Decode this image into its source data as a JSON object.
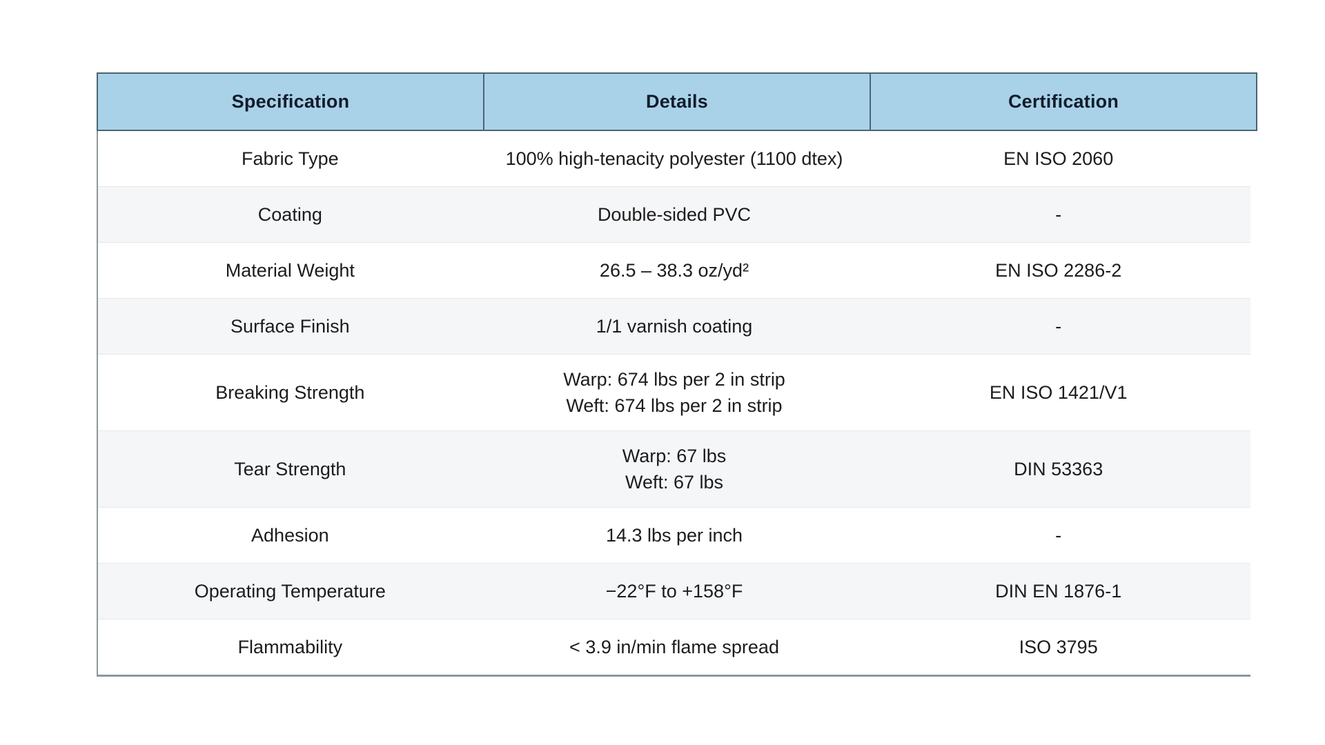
{
  "theme": {
    "page_bg": "#ffffff",
    "header_bg": "#a9d2e8",
    "header_border": "#4a6472",
    "header_text": "#121c2b",
    "body_text": "#1c1c1c",
    "row_alt_bg": "#f5f6f8",
    "row_separator": "#e6e7e9",
    "table_edge": "#8d969b"
  },
  "table": {
    "columns": [
      "Specification",
      "Details",
      "Certification"
    ],
    "rows": [
      {
        "specification": "Fabric Type",
        "details": "100% high-tenacity polyester (1100 dtex)",
        "certification": "EN ISO 2060"
      },
      {
        "specification": "Coating",
        "details": "Double-sided PVC",
        "certification": "-"
      },
      {
        "specification": "Material Weight",
        "details": "26.5 – 38.3 oz/yd²",
        "certification": "EN ISO 2286-2"
      },
      {
        "specification": "Surface Finish",
        "details": "1/1 varnish coating",
        "certification": "-"
      },
      {
        "specification": "Breaking Strength",
        "details": "Warp: 674 lbs per 2 in strip\nWeft: 674 lbs per 2 in strip",
        "certification": "EN ISO 1421/V1"
      },
      {
        "specification": "Tear Strength",
        "details": "Warp: 67 lbs\nWeft: 67 lbs",
        "certification": "DIN 53363"
      },
      {
        "specification": "Adhesion",
        "details": "14.3 lbs per inch",
        "certification": "-"
      },
      {
        "specification": "Operating Temperature",
        "details": "−22°F to +158°F",
        "certification": "DIN EN 1876-1"
      },
      {
        "specification": "Flammability",
        "details": "< 3.9 in/min flame spread",
        "certification": "ISO 3795"
      }
    ]
  }
}
